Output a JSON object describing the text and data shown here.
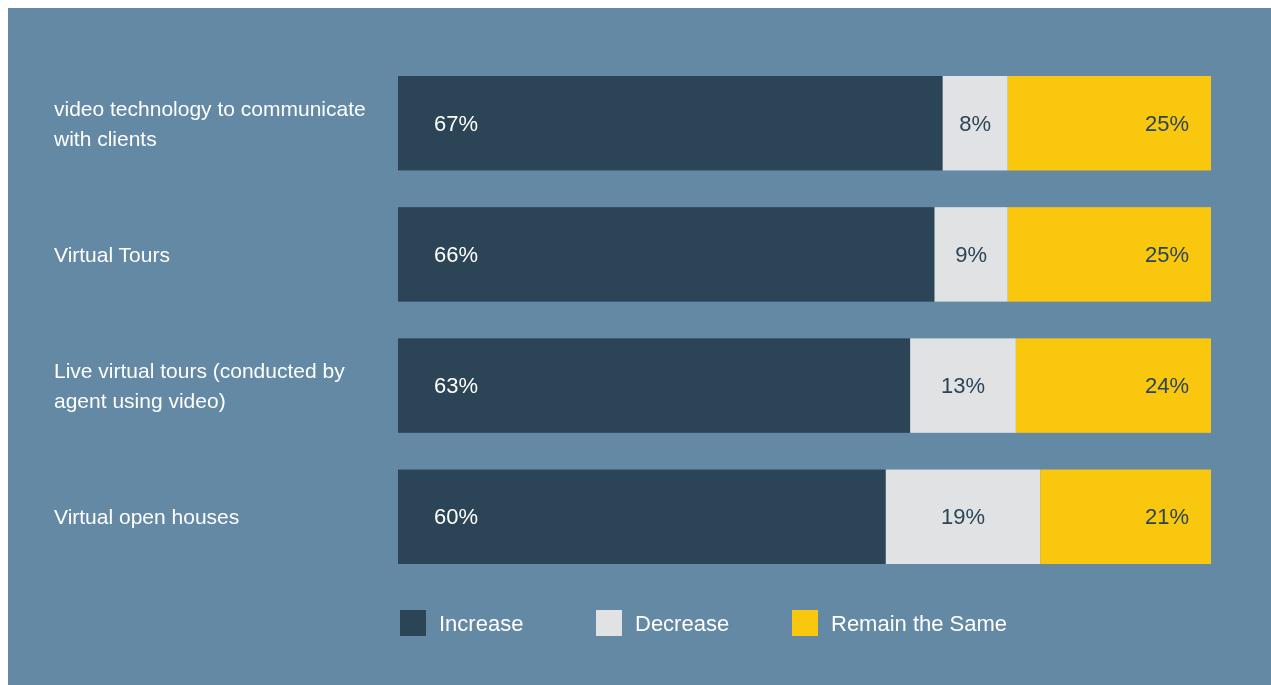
{
  "chart_data": {
    "type": "bar",
    "orientation": "horizontal",
    "stacked": true,
    "legend": "bottom",
    "categories": [
      "video technology to communicate with clients",
      "Virtual Tours",
      "Live virtual tours (conducted by agent using video)",
      "Virtual open houses"
    ],
    "series": [
      {
        "name": "Increase",
        "color": "#2b4456",
        "values": [
          67,
          66,
          63,
          60
        ],
        "value_labels": [
          "67%",
          "66%",
          "63%",
          "60%"
        ]
      },
      {
        "name": "Decrease",
        "color": "#e1e2e4",
        "values": [
          8,
          9,
          13,
          19
        ],
        "value_labels": [
          "8%",
          "9%",
          "13%",
          "19%"
        ]
      },
      {
        "name": "Remain the Same",
        "color": "#f9c80e",
        "values": [
          25,
          25,
          24,
          21
        ],
        "value_labels": [
          "25%",
          "25%",
          "24%",
          "21%"
        ]
      }
    ]
  }
}
